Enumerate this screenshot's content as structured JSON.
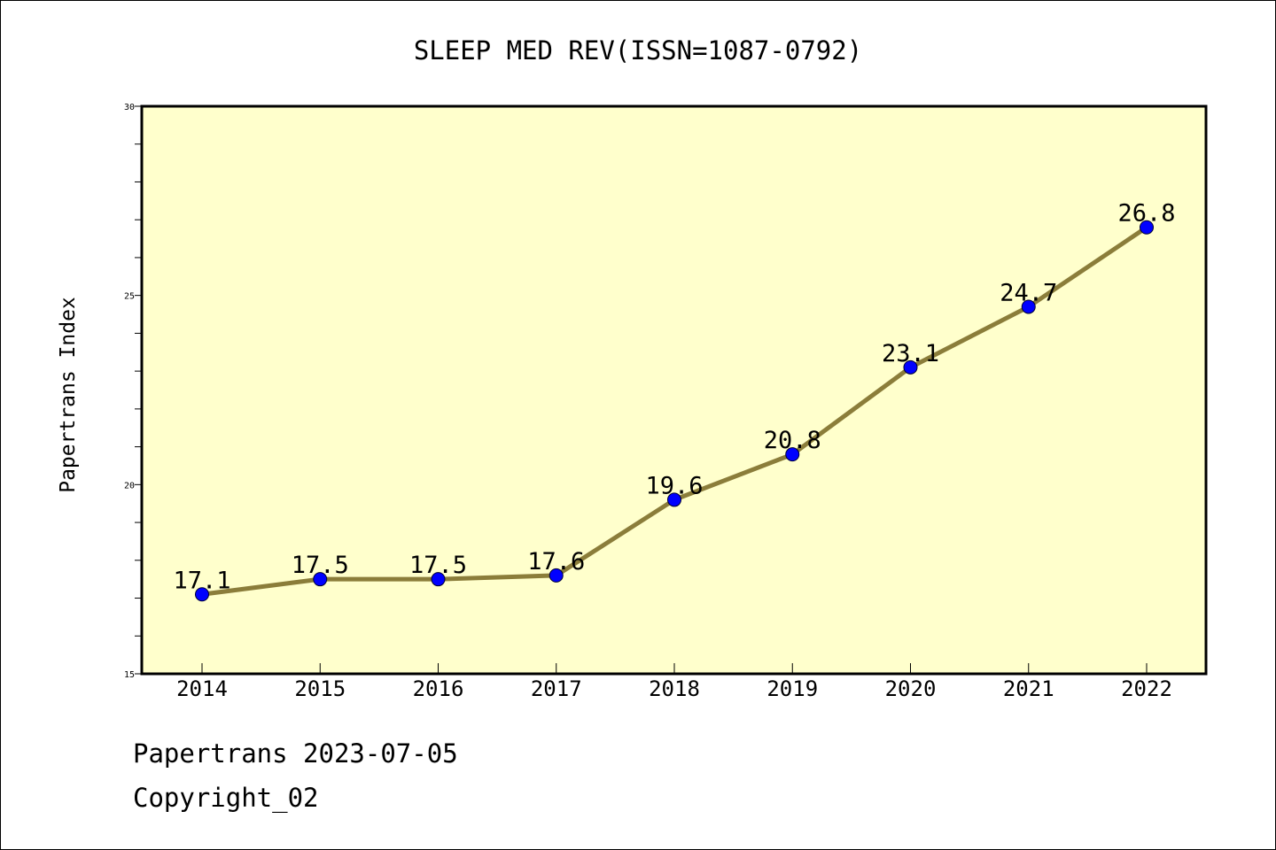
{
  "chart_data": {
    "type": "line",
    "title": "SLEEP MED REV(ISSN=1087-0792)",
    "xlabel": "",
    "ylabel": "Papertrans Index",
    "categories": [
      "2014",
      "2015",
      "2016",
      "2017",
      "2018",
      "2019",
      "2020",
      "2021",
      "2022"
    ],
    "series": [
      {
        "values": [
          17.1,
          17.5,
          17.5,
          17.6,
          19.6,
          20.8,
          23.1,
          24.7,
          26.8
        ],
        "labels": [
          "17.1",
          "17.5",
          "17.5",
          "17.6",
          "19.6",
          "20.8",
          "23.1",
          "24.7",
          "26.8"
        ]
      }
    ],
    "ylim": [
      15,
      30
    ],
    "yticks": [
      "15",
      "20",
      "25",
      "30"
    ],
    "grid": false,
    "legend": "none",
    "colors": {
      "plot_background": "#ffffcc",
      "line": "#8b7d3a",
      "marker": "#0000ff"
    }
  },
  "footer": {
    "line1": "Papertrans 2023-07-05",
    "line2": "Copyright_02"
  }
}
